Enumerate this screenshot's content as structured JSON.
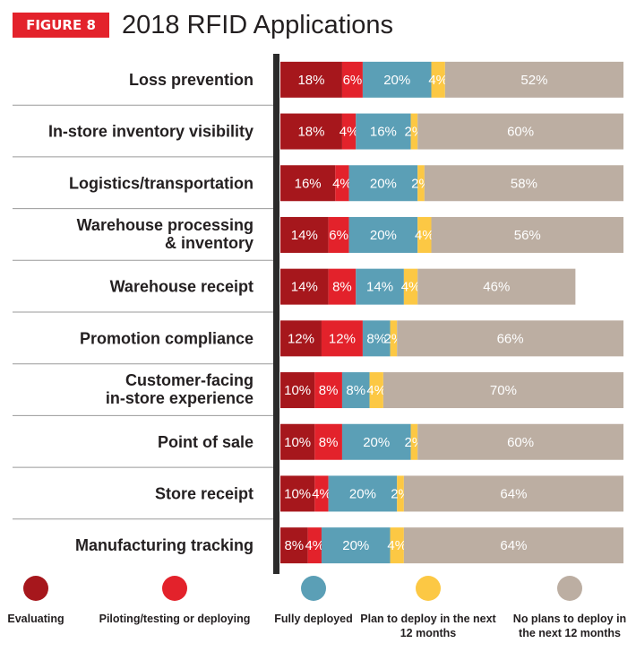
{
  "figure_badge": "FIGURE 8",
  "chart_data": {
    "type": "bar",
    "orientation": "horizontal",
    "stacked": true,
    "title": "2018 RFID Applications",
    "categories": [
      "Loss prevention",
      "In-store inventory visibility",
      "Logistics/transportation",
      "Warehouse processing & inventory",
      "Warehouse receipt",
      "Promotion compliance",
      "Customer-facing in-store experience",
      "Point of sale",
      "Store receipt",
      "Manufacturing tracking"
    ],
    "series": [
      {
        "name": "Evaluating",
        "color": "#a6171c",
        "values": [
          18,
          18,
          16,
          14,
          14,
          12,
          10,
          10,
          10,
          8
        ]
      },
      {
        "name": "Piloting/testing or deploying",
        "color": "#e3222b",
        "values": [
          6,
          4,
          4,
          6,
          8,
          12,
          8,
          8,
          4,
          4
        ]
      },
      {
        "name": "Fully deployed",
        "color": "#5b9fb6",
        "values": [
          20,
          16,
          20,
          20,
          14,
          8,
          8,
          20,
          20,
          20
        ]
      },
      {
        "name": "Plan to deploy in the next 12 months",
        "color": "#fcc844",
        "values": [
          4,
          2,
          2,
          4,
          4,
          2,
          4,
          2,
          2,
          4
        ]
      },
      {
        "name": "No plans to deploy in the next 12 months",
        "color": "#bcaea2",
        "values": [
          52,
          60,
          58,
          56,
          46,
          66,
          70,
          60,
          64,
          64
        ]
      }
    ],
    "value_suffix": "%",
    "legend_position": "bottom",
    "grid": false
  }
}
